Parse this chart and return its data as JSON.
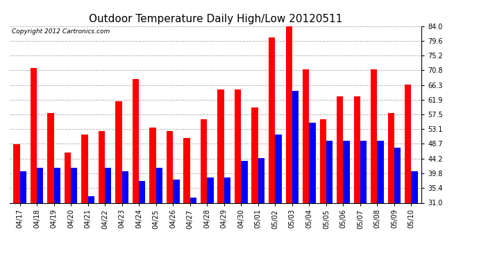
{
  "title": "Outdoor Temperature Daily High/Low 20120511",
  "copyright": "Copyright 2012 Cartronics.com",
  "dates": [
    "04/17",
    "04/18",
    "04/19",
    "04/20",
    "04/21",
    "04/22",
    "04/23",
    "04/24",
    "04/25",
    "04/26",
    "04/27",
    "04/28",
    "04/29",
    "04/30",
    "05/01",
    "05/02",
    "05/03",
    "05/04",
    "05/05",
    "05/06",
    "05/07",
    "05/08",
    "05/09",
    "05/10"
  ],
  "highs": [
    48.5,
    71.5,
    58.0,
    46.0,
    51.5,
    52.5,
    61.5,
    68.0,
    53.5,
    52.5,
    50.5,
    56.0,
    65.0,
    65.0,
    59.5,
    80.5,
    84.0,
    71.0,
    56.0,
    63.0,
    63.0,
    71.0,
    58.0,
    66.5
  ],
  "lows": [
    40.5,
    41.5,
    41.5,
    41.5,
    33.0,
    41.5,
    40.5,
    37.5,
    41.5,
    38.0,
    32.5,
    38.5,
    38.5,
    43.5,
    44.5,
    51.5,
    64.5,
    55.0,
    49.5,
    49.5,
    49.5,
    49.5,
    47.5,
    40.5
  ],
  "high_color": "#ff0000",
  "low_color": "#0000ff",
  "bg_color": "#ffffff",
  "bar_width": 0.38,
  "ymin": 31.0,
  "ymax": 84.0,
  "yticks": [
    31.0,
    35.4,
    39.8,
    44.2,
    48.7,
    53.1,
    57.5,
    61.9,
    66.3,
    70.8,
    75.2,
    79.6,
    84.0
  ],
  "grid_color": "#aaaaaa",
  "title_fontsize": 11,
  "tick_fontsize": 7,
  "copyright_fontsize": 6.5
}
